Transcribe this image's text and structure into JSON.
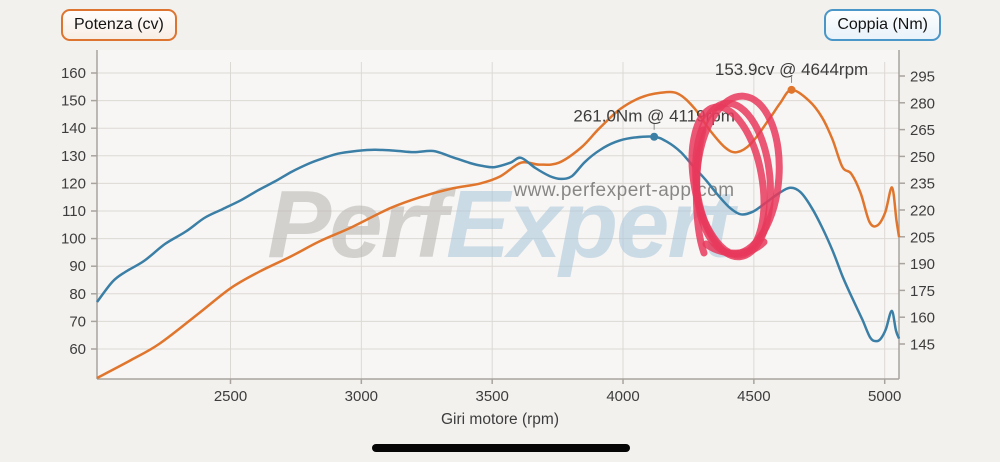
{
  "page": {
    "background": "#f3f1ee"
  },
  "legend": {
    "power": {
      "label": "Potenza (cv)",
      "border_color": "#dd7430"
    },
    "torque": {
      "label": "Coppia (Nm)",
      "border_color": "#4a96c8"
    }
  },
  "watermark": {
    "brand_left": "Perf",
    "brand_right": "Expert",
    "url": "www.perfexpert-app.com",
    "brand_left_color": "#b6b3b0",
    "brand_right_color": "#a8c6dc",
    "url_color": "#9fb0bf"
  },
  "scribble": {
    "color": "#e83a5c",
    "width": 7
  },
  "chart_data": {
    "type": "line",
    "title": "",
    "xlabel": "Giri motore (rpm)",
    "x_ticks": [
      2500,
      3000,
      3500,
      4000,
      4500,
      5000
    ],
    "x_range_rpm": [
      1990,
      5055
    ],
    "grid": true,
    "legend_position": "top",
    "y_left_axis": {
      "name": "Potenza (cv)",
      "ticks": [
        160,
        150,
        140,
        130,
        120,
        110,
        100,
        90,
        80,
        70,
        60
      ]
    },
    "y_right_axis": {
      "name": "Coppia (Nm)",
      "ticks": [
        295,
        280,
        265,
        250,
        235,
        220,
        205,
        190,
        175,
        160,
        145
      ]
    },
    "series": [
      {
        "name": "Potenza (cv)",
        "axis": "left",
        "color": "#e0762d",
        "points": [
          [
            1990,
            49.5
          ],
          [
            2120,
            56
          ],
          [
            2230,
            62
          ],
          [
            2380,
            73
          ],
          [
            2500,
            82
          ],
          [
            2610,
            88
          ],
          [
            2730,
            93.5
          ],
          [
            2840,
            99
          ],
          [
            2960,
            104
          ],
          [
            3110,
            111
          ],
          [
            3225,
            115
          ],
          [
            3340,
            118
          ],
          [
            3455,
            120
          ],
          [
            3530,
            122.5
          ],
          [
            3610,
            127.5
          ],
          [
            3680,
            126.8
          ],
          [
            3755,
            127.5
          ],
          [
            3840,
            133
          ],
          [
            3910,
            140
          ],
          [
            3990,
            147
          ],
          [
            4065,
            151
          ],
          [
            4140,
            152.8
          ],
          [
            4210,
            152.5
          ],
          [
            4275,
            147
          ],
          [
            4330,
            139.5
          ],
          [
            4390,
            133
          ],
          [
            4435,
            131.3
          ],
          [
            4490,
            134.5
          ],
          [
            4560,
            143.5
          ],
          [
            4600,
            149
          ],
          [
            4644,
            153.9
          ],
          [
            4710,
            150
          ],
          [
            4760,
            144
          ],
          [
            4800,
            136
          ],
          [
            4838,
            126
          ],
          [
            4872,
            123.5
          ],
          [
            4908,
            116.5
          ],
          [
            4942,
            106
          ],
          [
            4972,
            104.8
          ],
          [
            5002,
            109.5
          ],
          [
            5028,
            118.5
          ],
          [
            5045,
            106.5
          ],
          [
            5055,
            100.5
          ]
        ]
      },
      {
        "name": "Coppia (Nm)",
        "axis": "right",
        "color": "#3b7fa6",
        "points": [
          [
            1990,
            168.5
          ],
          [
            2050,
            180
          ],
          [
            2100,
            185.5
          ],
          [
            2170,
            191.5
          ],
          [
            2250,
            201
          ],
          [
            2330,
            208
          ],
          [
            2400,
            215.5
          ],
          [
            2470,
            220.5
          ],
          [
            2540,
            225.5
          ],
          [
            2605,
            231
          ],
          [
            2670,
            236
          ],
          [
            2735,
            241.5
          ],
          [
            2800,
            246
          ],
          [
            2855,
            249
          ],
          [
            2910,
            251.5
          ],
          [
            2980,
            253
          ],
          [
            3050,
            253.7
          ],
          [
            3130,
            253.2
          ],
          [
            3200,
            252.4
          ],
          [
            3275,
            253
          ],
          [
            3340,
            250
          ],
          [
            3415,
            246.3
          ],
          [
            3465,
            244.6
          ],
          [
            3510,
            244
          ],
          [
            3570,
            246.5
          ],
          [
            3610,
            249.2
          ],
          [
            3665,
            243.5
          ],
          [
            3720,
            239
          ],
          [
            3762,
            237.4
          ],
          [
            3805,
            239
          ],
          [
            3855,
            247
          ],
          [
            3912,
            253.6
          ],
          [
            3970,
            258
          ],
          [
            4030,
            260.3
          ],
          [
            4119,
            261
          ],
          [
            4170,
            258
          ],
          [
            4220,
            252.5
          ],
          [
            4265,
            245
          ],
          [
            4315,
            237
          ],
          [
            4365,
            228
          ],
          [
            4410,
            221
          ],
          [
            4450,
            217.6
          ],
          [
            4495,
            219
          ],
          [
            4545,
            224
          ],
          [
            4592,
            229
          ],
          [
            4638,
            232.4
          ],
          [
            4678,
            230
          ],
          [
            4720,
            221.5
          ],
          [
            4760,
            210.5
          ],
          [
            4800,
            197.5
          ],
          [
            4840,
            182.5
          ],
          [
            4875,
            171
          ],
          [
            4915,
            158.5
          ],
          [
            4945,
            148.5
          ],
          [
            4968,
            146.6
          ],
          [
            4985,
            148
          ],
          [
            5005,
            153.5
          ],
          [
            5027,
            163.5
          ],
          [
            5043,
            152.5
          ],
          [
            5055,
            148
          ]
        ]
      }
    ],
    "annotations": [
      {
        "series": "right",
        "rpm": 4119,
        "value": 261.0,
        "label": "261.0Nm @ 4119rpm",
        "dot_color": "#3b7fa6"
      },
      {
        "series": "left",
        "rpm": 4644,
        "value": 153.9,
        "label": "153.9cv @ 4644rpm",
        "dot_color": "#e0762d"
      }
    ]
  }
}
